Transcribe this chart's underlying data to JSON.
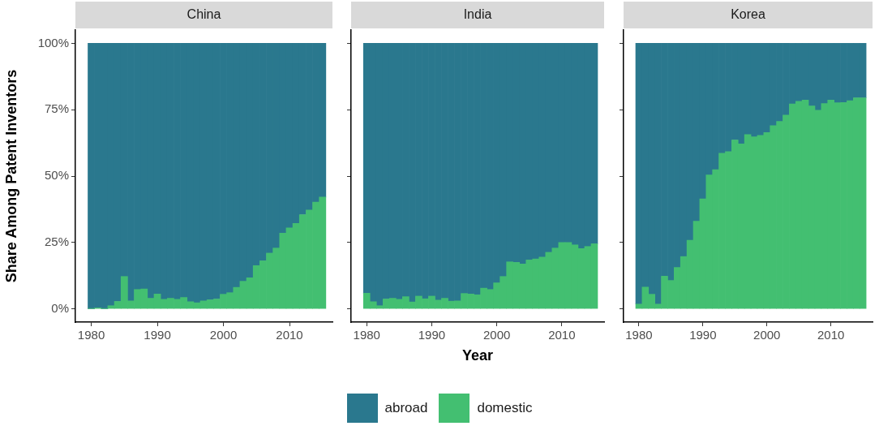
{
  "chart_data": [
    {
      "type": "bar",
      "title": "China",
      "ylabel": "Share Among Patent Inventors",
      "stacked": true,
      "legend": "bottom",
      "x": [
        1980,
        1981,
        1982,
        1983,
        1984,
        1985,
        1986,
        1987,
        1988,
        1989,
        1990,
        1991,
        1992,
        1993,
        1994,
        1995,
        1996,
        1997,
        1998,
        1999,
        2000,
        2001,
        2002,
        2003,
        2004,
        2005,
        2006,
        2007,
        2008,
        2009,
        2010,
        2011,
        2012,
        2013,
        2014,
        2015
      ],
      "xlim": [
        1977.6,
        2016.5
      ],
      "xticks": [
        1980,
        1990,
        2000,
        2010
      ],
      "ylim": [
        -5,
        105
      ],
      "yticks": [
        {
          "value": 0,
          "label": "0%"
        },
        {
          "value": 25,
          "label": "25%"
        },
        {
          "value": 50,
          "label": "50%"
        },
        {
          "value": 75,
          "label": "75%"
        },
        {
          "value": 100,
          "label": "100%"
        }
      ],
      "grid": false,
      "series": [
        {
          "name": "domestic",
          "color": "#43bf71",
          "values": [
            0.1,
            0.4,
            0.1,
            1.2,
            2.8,
            12.2,
            3.0,
            7.3,
            7.5,
            4.0,
            5.6,
            3.6,
            4.0,
            3.6,
            4.3,
            2.7,
            2.3,
            3.0,
            3.4,
            3.7,
            5.5,
            6.1,
            8.1,
            10.4,
            11.7,
            16.3,
            18.1,
            21.0,
            22.9,
            28.5,
            30.5,
            32.2,
            35.5,
            37.2,
            40.2,
            42.1
          ]
        },
        {
          "name": "abroad",
          "color": "#2a788e",
          "values": [
            99.9,
            99.6,
            99.9,
            98.8,
            97.2,
            87.8,
            97.0,
            92.7,
            92.5,
            96.0,
            94.4,
            96.4,
            96.0,
            96.4,
            95.7,
            97.3,
            97.7,
            97.0,
            96.6,
            96.3,
            94.5,
            93.9,
            91.9,
            89.6,
            88.3,
            83.7,
            81.9,
            79.0,
            77.1,
            71.5,
            69.5,
            67.8,
            64.5,
            62.8,
            59.8,
            57.9
          ]
        }
      ]
    },
    {
      "type": "bar",
      "title": "India",
      "xlabel": "Year",
      "stacked": true,
      "tick_labels": "x",
      "x": [
        1980,
        1981,
        1982,
        1983,
        1984,
        1985,
        1986,
        1987,
        1988,
        1989,
        1990,
        1991,
        1992,
        1993,
        1994,
        1995,
        1996,
        1997,
        1998,
        1999,
        2000,
        2001,
        2002,
        2003,
        2004,
        2005,
        2006,
        2007,
        2008,
        2009,
        2010,
        2011,
        2012,
        2013,
        2014,
        2015
      ],
      "xlim": [
        1977.6,
        2016.5
      ],
      "xticks": [
        1980,
        1990,
        2000,
        2010
      ],
      "ylim": [
        -5,
        105
      ],
      "yticks": [
        {
          "value": 0,
          "label": null
        },
        {
          "value": 25,
          "label": null
        },
        {
          "value": 50,
          "label": null
        },
        {
          "value": 75,
          "label": null
        },
        {
          "value": 100,
          "label": null
        }
      ],
      "grid": false,
      "series": [
        {
          "color": "#43bf71",
          "values": [
            5.9,
            2.7,
            1.2,
            3.7,
            4.0,
            3.6,
            4.6,
            2.6,
            4.8,
            3.8,
            4.8,
            3.3,
            4.0,
            2.9,
            3.0,
            5.8,
            5.6,
            5.3,
            7.8,
            7.3,
            9.8,
            12.2,
            17.7,
            17.5,
            16.9,
            18.4,
            18.8,
            19.5,
            21.3,
            22.9,
            25.0,
            25.0,
            24.1,
            22.7,
            23.5,
            24.5
          ]
        },
        {
          "color": "#2a788e",
          "values": [
            94.1,
            97.3,
            98.8,
            96.3,
            96.0,
            96.4,
            95.4,
            97.4,
            95.2,
            96.2,
            95.2,
            96.7,
            96.0,
            97.1,
            97.0,
            94.2,
            94.4,
            94.7,
            92.2,
            92.7,
            90.2,
            87.8,
            82.3,
            82.5,
            83.1,
            81.6,
            81.2,
            80.5,
            78.7,
            77.1,
            75.0,
            75.0,
            75.9,
            77.3,
            76.5,
            75.5
          ]
        }
      ]
    },
    {
      "type": "bar",
      "title": "Korea",
      "stacked": true,
      "tick_labels": "x",
      "x": [
        1980,
        1981,
        1982,
        1983,
        1984,
        1985,
        1986,
        1987,
        1988,
        1989,
        1990,
        1991,
        1992,
        1993,
        1994,
        1995,
        1996,
        1997,
        1998,
        1999,
        2000,
        2001,
        2002,
        2003,
        2004,
        2005,
        2006,
        2007,
        2008,
        2009,
        2010,
        2011,
        2012,
        2013,
        2014,
        2015
      ],
      "xlim": [
        1977.6,
        2016.5
      ],
      "xticks": [
        1980,
        1990,
        2000,
        2010
      ],
      "ylim": [
        -5,
        105
      ],
      "yticks": [
        {
          "value": 0,
          "label": null
        },
        {
          "value": 25,
          "label": null
        },
        {
          "value": 50,
          "label": null
        },
        {
          "value": 75,
          "label": null
        },
        {
          "value": 100,
          "label": null
        }
      ],
      "grid": false,
      "series": [
        {
          "color": "#43bf71",
          "values": [
            1.8,
            8.2,
            5.5,
            1.8,
            12.3,
            10.7,
            15.6,
            19.7,
            25.8,
            33.0,
            41.4,
            50.4,
            52.4,
            58.6,
            59.2,
            63.6,
            62.1,
            65.6,
            64.8,
            65.3,
            66.4,
            69.0,
            70.6,
            73.0,
            77.2,
            78.2,
            78.6,
            76.4,
            74.8,
            77.3,
            78.6,
            77.6,
            77.7,
            78.4,
            79.5,
            79.5
          ]
        },
        {
          "color": "#2a788e",
          "values": [
            98.2,
            91.8,
            94.5,
            98.2,
            87.7,
            89.3,
            84.4,
            80.3,
            74.2,
            67.0,
            58.6,
            49.6,
            47.6,
            41.4,
            40.8,
            36.4,
            37.9,
            34.4,
            35.2,
            34.7,
            33.6,
            31.0,
            29.4,
            27.0,
            22.8,
            21.8,
            21.4,
            23.6,
            25.2,
            22.7,
            21.4,
            22.4,
            22.3,
            21.6,
            20.5,
            20.5
          ]
        }
      ]
    }
  ]
}
